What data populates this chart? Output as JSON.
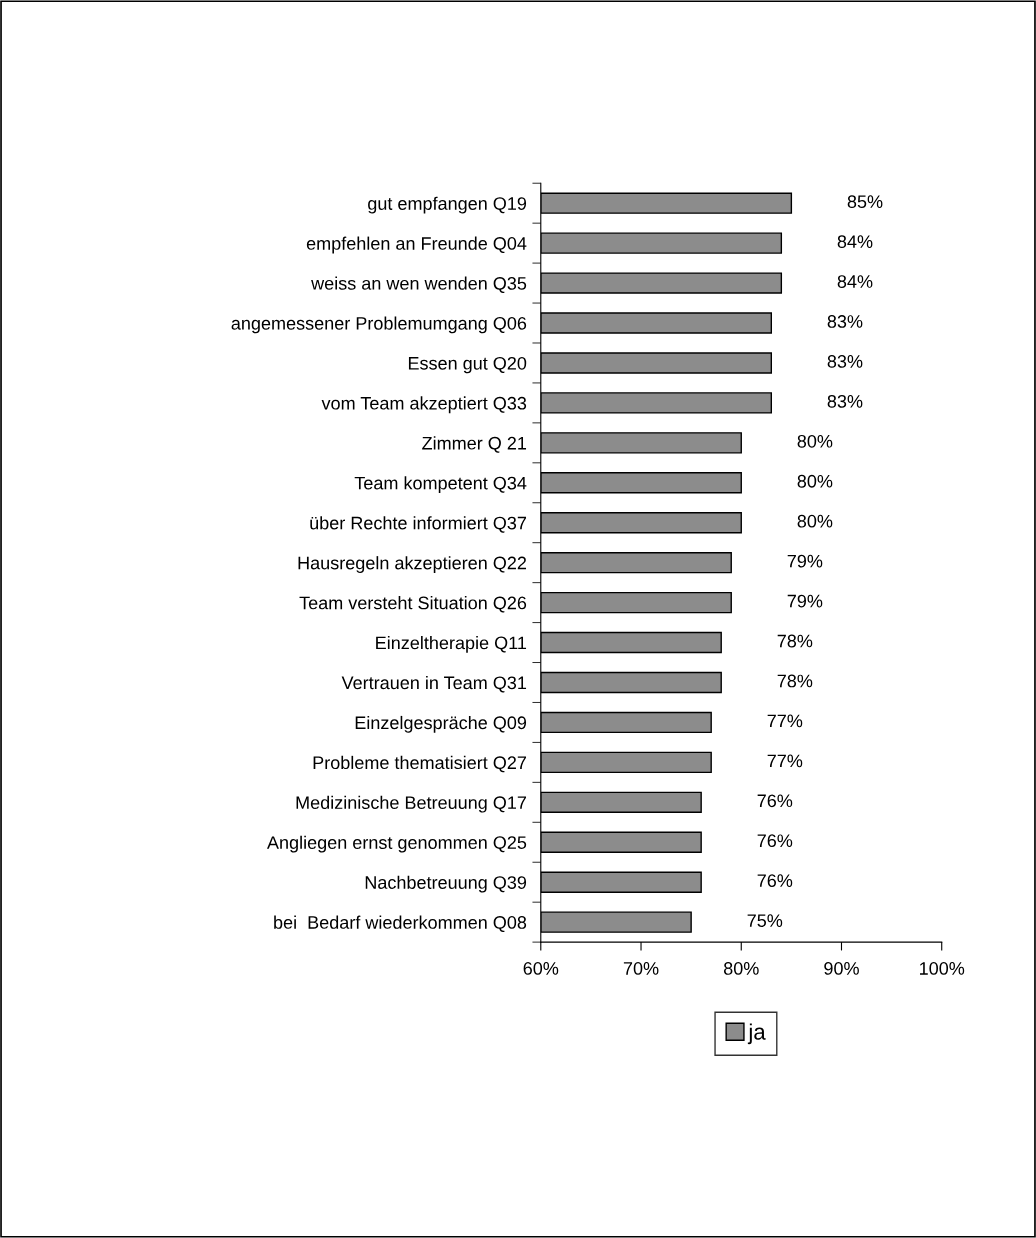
{
  "chart_data": {
    "type": "bar",
    "orientation": "horizontal",
    "categories": [
      "gut empfangen Q19",
      "empfehlen an Freunde Q04",
      "weiss an wen wenden Q35",
      "angemessener Problemumgang Q06",
      "Essen gut Q20",
      "vom Team akzeptiert Q33",
      "Zimmer Q 21",
      "Team kompetent Q34",
      "über Rechte informiert Q37",
      "Hausregeln akzeptieren Q22",
      "Team versteht Situation Q26",
      "Einzeltherapie Q11",
      "Vertrauen in Team Q31",
      "Einzelgespräche Q09",
      "Probleme thematisiert Q27",
      "Medizinische Betreuung Q17",
      "Angliegen ernst genommen Q25",
      "Nachbetreuung Q39",
      "bei  Bedarf wiederkommen Q08"
    ],
    "series": [
      {
        "name": "ja",
        "color": "#8c8c8c",
        "values": [
          85,
          84,
          84,
          83,
          83,
          83,
          80,
          80,
          80,
          79,
          79,
          78,
          78,
          77,
          77,
          76,
          76,
          76,
          75
        ]
      }
    ],
    "value_labels": [
      "85%",
      "84%",
      "84%",
      "83%",
      "83%",
      "83%",
      "80%",
      "80%",
      "80%",
      "79%",
      "79%",
      "78%",
      "78%",
      "77%",
      "77%",
      "76%",
      "76%",
      "76%",
      "75%"
    ],
    "xlim": [
      60,
      100
    ],
    "xticks": [
      {
        "value": 60,
        "label": "60%"
      },
      {
        "value": 70,
        "label": "70%"
      },
      {
        "value": 80,
        "label": "80%"
      },
      {
        "value": 90,
        "label": "90%"
      },
      {
        "value": 100,
        "label": "100%"
      }
    ],
    "grid": false,
    "legend": "bottom"
  }
}
